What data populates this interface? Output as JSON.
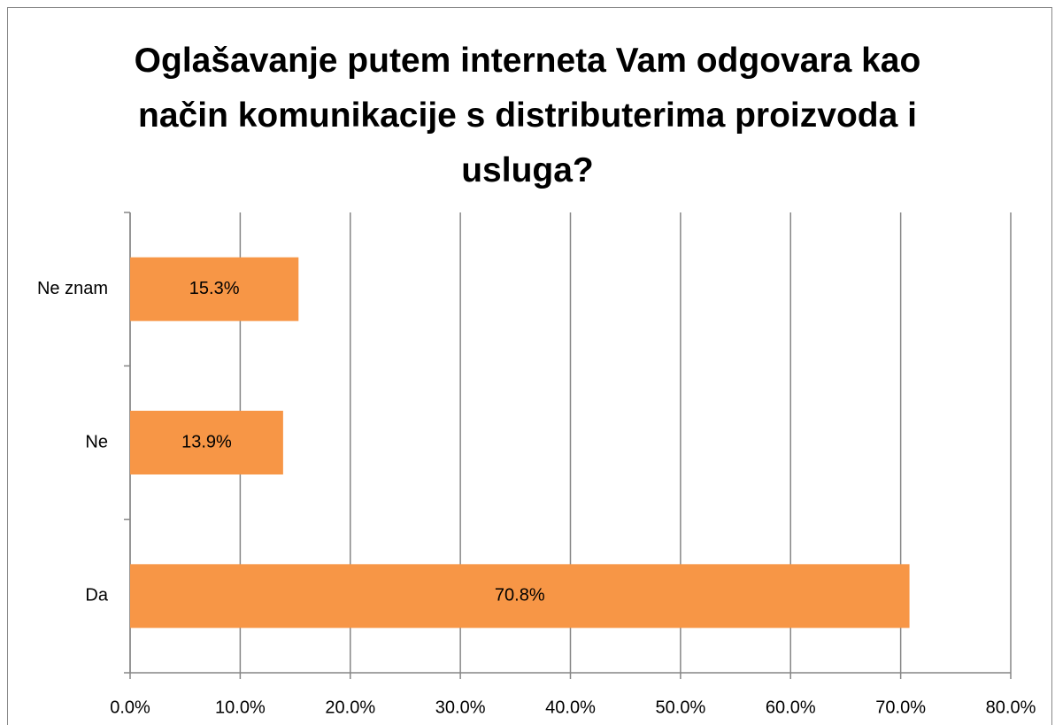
{
  "chart_data": {
    "type": "bar",
    "orientation": "horizontal",
    "title": "Oglašavanje putem interneta Vam odgovara kao način komunikacije s distributerima proizvoda i usluga?",
    "categories": [
      "Da",
      "Ne",
      "Ne znam"
    ],
    "values": [
      70.8,
      13.9,
      15.3
    ],
    "value_labels": [
      "70.8%",
      "13.9%",
      "15.3%"
    ],
    "color": "#f79646",
    "xlim": [
      0,
      80
    ],
    "xticks": [
      {
        "value": 0,
        "label": "0.0%"
      },
      {
        "value": 10,
        "label": "10.0%"
      },
      {
        "value": 20,
        "label": "20.0%"
      },
      {
        "value": 30,
        "label": "30.0%"
      },
      {
        "value": 40,
        "label": "40.0%"
      },
      {
        "value": 50,
        "label": "50.0%"
      },
      {
        "value": 60,
        "label": "60.0%"
      },
      {
        "value": 70,
        "label": "70.0%"
      },
      {
        "value": 80,
        "label": "80.0%"
      }
    ],
    "grid": true
  }
}
